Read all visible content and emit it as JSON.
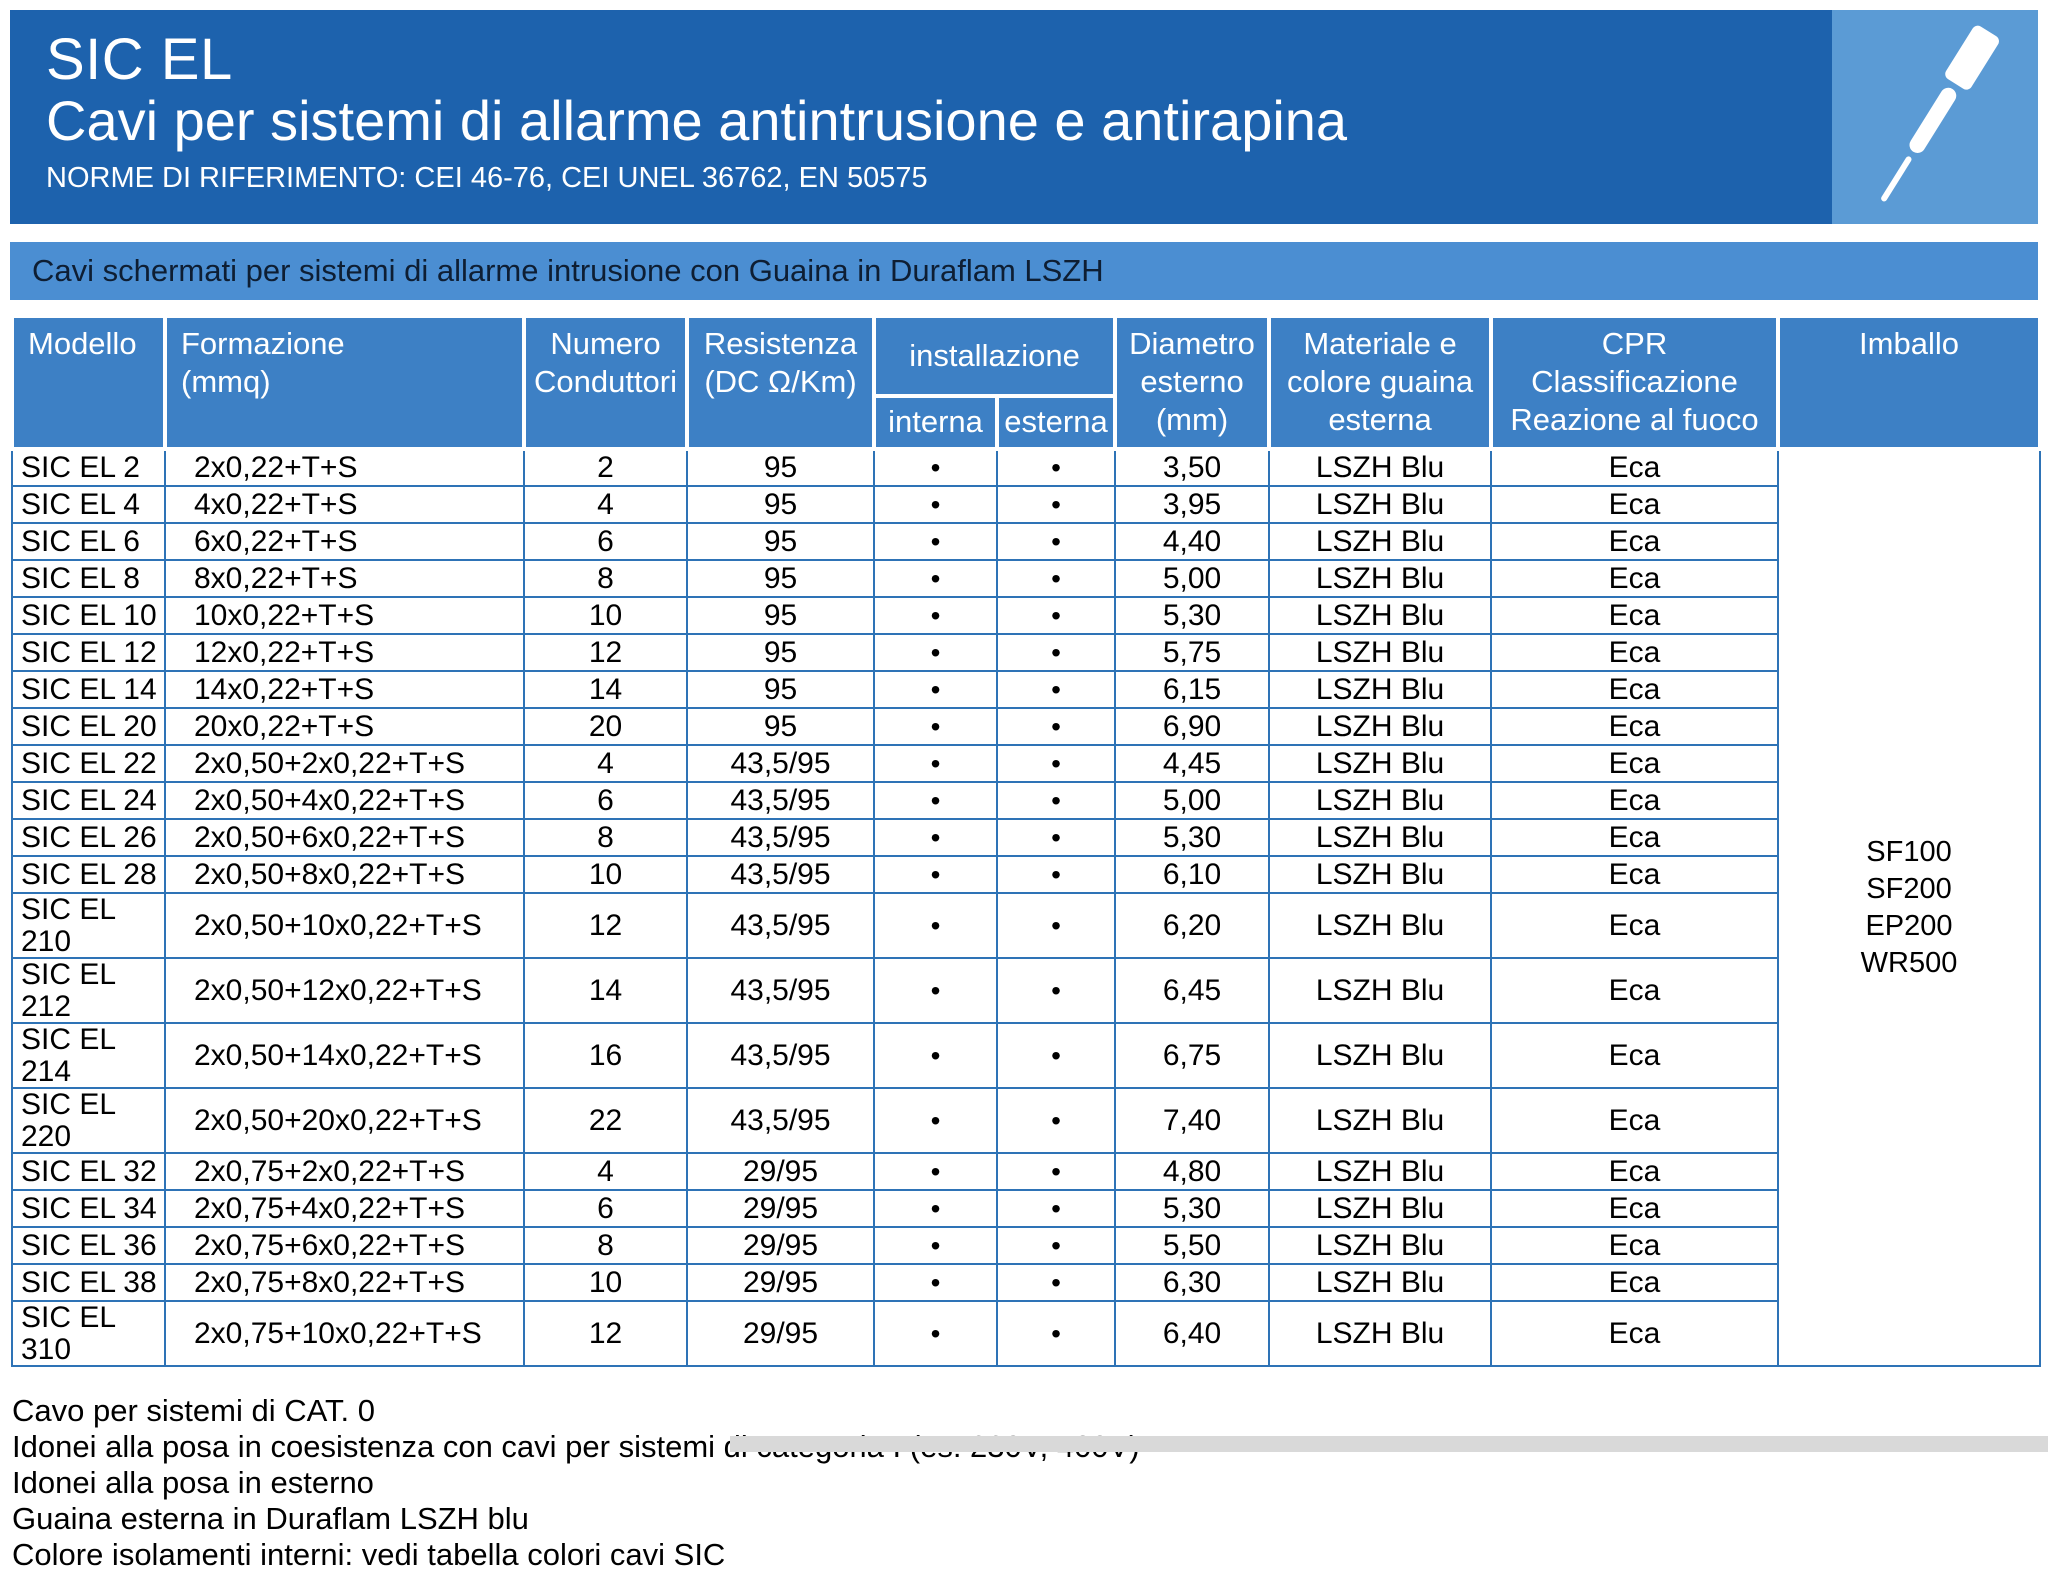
{
  "header": {
    "brand": "SIC EL",
    "title": "Cavi per sistemi di allarme antintrusione e antirapina",
    "norms": "NORME DI RIFERIMENTO: CEI 46-76, CEI UNEL 36762, EN 50575"
  },
  "band": {
    "text": "Cavi schermati per sistemi di allarme intrusione con Guaina in Duraflam LSZH"
  },
  "table": {
    "headers": {
      "modello": "Modello",
      "formazione": "Formazione\n(mmq)",
      "conduttori": "Numero\nConduttori",
      "resistenza": "Resistenza\n(DC Ω/Km)",
      "installazione": "installazione",
      "interna": "interna",
      "esterna": "esterna",
      "diametro": "Diametro\nesterno\n(mm)",
      "materiale": "Materiale e\ncolore guaina\nesterna",
      "cpr": "CPR\nClassificazione\nReazione al fuoco",
      "imballo": "Imballo"
    },
    "rows": [
      [
        "SIC EL 2",
        "2x0,22+T+S",
        "2",
        "95",
        "•",
        "•",
        "3,50",
        "LSZH Blu",
        "Eca"
      ],
      [
        "SIC EL 4",
        "4x0,22+T+S",
        "4",
        "95",
        "•",
        "•",
        "3,95",
        "LSZH Blu",
        "Eca"
      ],
      [
        "SIC EL 6",
        "6x0,22+T+S",
        "6",
        "95",
        "•",
        "•",
        "4,40",
        "LSZH Blu",
        "Eca"
      ],
      [
        "SIC EL 8",
        "8x0,22+T+S",
        "8",
        "95",
        "•",
        "•",
        "5,00",
        "LSZH Blu",
        "Eca"
      ],
      [
        "SIC EL 10",
        "10x0,22+T+S",
        "10",
        "95",
        "•",
        "•",
        "5,30",
        "LSZH Blu",
        "Eca"
      ],
      [
        "SIC EL 12",
        "12x0,22+T+S",
        "12",
        "95",
        "•",
        "•",
        "5,75",
        "LSZH Blu",
        "Eca"
      ],
      [
        "SIC EL 14",
        "14x0,22+T+S",
        "14",
        "95",
        "•",
        "•",
        "6,15",
        "LSZH Blu",
        "Eca"
      ],
      [
        "SIC EL 20",
        "20x0,22+T+S",
        "20",
        "95",
        "•",
        "•",
        "6,90",
        "LSZH Blu",
        "Eca"
      ],
      [
        "SIC EL 22",
        "2x0,50+2x0,22+T+S",
        "4",
        "43,5/95",
        "•",
        "•",
        "4,45",
        "LSZH Blu",
        "Eca"
      ],
      [
        "SIC EL 24",
        "2x0,50+4x0,22+T+S",
        "6",
        "43,5/95",
        "•",
        "•",
        "5,00",
        "LSZH Blu",
        "Eca"
      ],
      [
        "SIC EL 26",
        "2x0,50+6x0,22+T+S",
        "8",
        "43,5/95",
        "•",
        "•",
        "5,30",
        "LSZH Blu",
        "Eca"
      ],
      [
        "SIC EL 28",
        "2x0,50+8x0,22+T+S",
        "10",
        "43,5/95",
        "•",
        "•",
        "6,10",
        "LSZH Blu",
        "Eca"
      ],
      [
        "SIC EL 210",
        "2x0,50+10x0,22+T+S",
        "12",
        "43,5/95",
        "•",
        "•",
        "6,20",
        "LSZH Blu",
        "Eca"
      ],
      [
        "SIC EL 212",
        "2x0,50+12x0,22+T+S",
        "14",
        "43,5/95",
        "•",
        "•",
        "6,45",
        "LSZH Blu",
        "Eca"
      ],
      [
        "SIC EL 214",
        "2x0,50+14x0,22+T+S",
        "16",
        "43,5/95",
        "•",
        "•",
        "6,75",
        "LSZH Blu",
        "Eca"
      ],
      [
        "SIC EL 220",
        "2x0,50+20x0,22+T+S",
        "22",
        "43,5/95",
        "•",
        "•",
        "7,40",
        "LSZH Blu",
        "Eca"
      ],
      [
        "SIC EL 32",
        "2x0,75+2x0,22+T+S",
        "4",
        "29/95",
        "•",
        "•",
        "4,80",
        "LSZH Blu",
        "Eca"
      ],
      [
        "SIC EL 34",
        "2x0,75+4x0,22+T+S",
        "6",
        "29/95",
        "•",
        "•",
        "5,30",
        "LSZH Blu",
        "Eca"
      ],
      [
        "SIC EL 36",
        "2x0,75+6x0,22+T+S",
        "8",
        "29/95",
        "•",
        "•",
        "5,50",
        "LSZH Blu",
        "Eca"
      ],
      [
        "SIC EL 38",
        "2x0,75+8x0,22+T+S",
        "10",
        "29/95",
        "•",
        "•",
        "6,30",
        "LSZH Blu",
        "Eca"
      ],
      [
        "SIC EL 310",
        "2x0,75+10x0,22+T+S",
        "12",
        "29/95",
        "•",
        "•",
        "6,40",
        "LSZH Blu",
        "Eca"
      ]
    ],
    "imballo": [
      "SF100",
      "SF200",
      "EP200",
      "WR500"
    ]
  },
  "notes": [
    "Cavo per sistemi di CAT. 0",
    "Idonei alla posa in coesistenza con cavi per sistemi di categoria I (es: 230V, 400V)",
    "Idonei alla posa in esterno",
    "Guaina esterna in Duraflam LSZH blu",
    "Colore isolamenti interni: vedi tabella colori cavi SIC"
  ],
  "colors": {
    "header_bg": "#1d62ad",
    "band_bg": "#4b8ed2",
    "table_header_bg": "#3d80c5",
    "border_blue": "#2e73b6",
    "art_bg": "#5b9bd5"
  }
}
